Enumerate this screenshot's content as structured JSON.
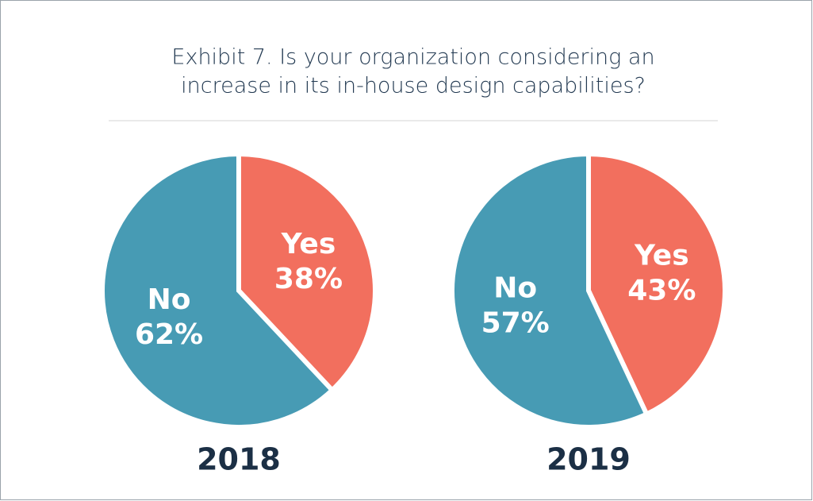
{
  "title": [
    "Exhibit 7. Is your organization considering an",
    "increase in its in-house design capabilities?"
  ],
  "chart_data": [
    {
      "type": "pie",
      "title": "2018",
      "categories": [
        "Yes",
        "No"
      ],
      "values": [
        38,
        62
      ],
      "value_labels": [
        "38%",
        "62%"
      ],
      "colors": [
        "#f26f5e",
        "#479bb4"
      ]
    },
    {
      "type": "pie",
      "title": "2019",
      "categories": [
        "Yes",
        "No"
      ],
      "values": [
        43,
        57
      ],
      "value_labels": [
        "43%",
        "57%"
      ],
      "colors": [
        "#f26f5e",
        "#479bb4"
      ]
    }
  ]
}
